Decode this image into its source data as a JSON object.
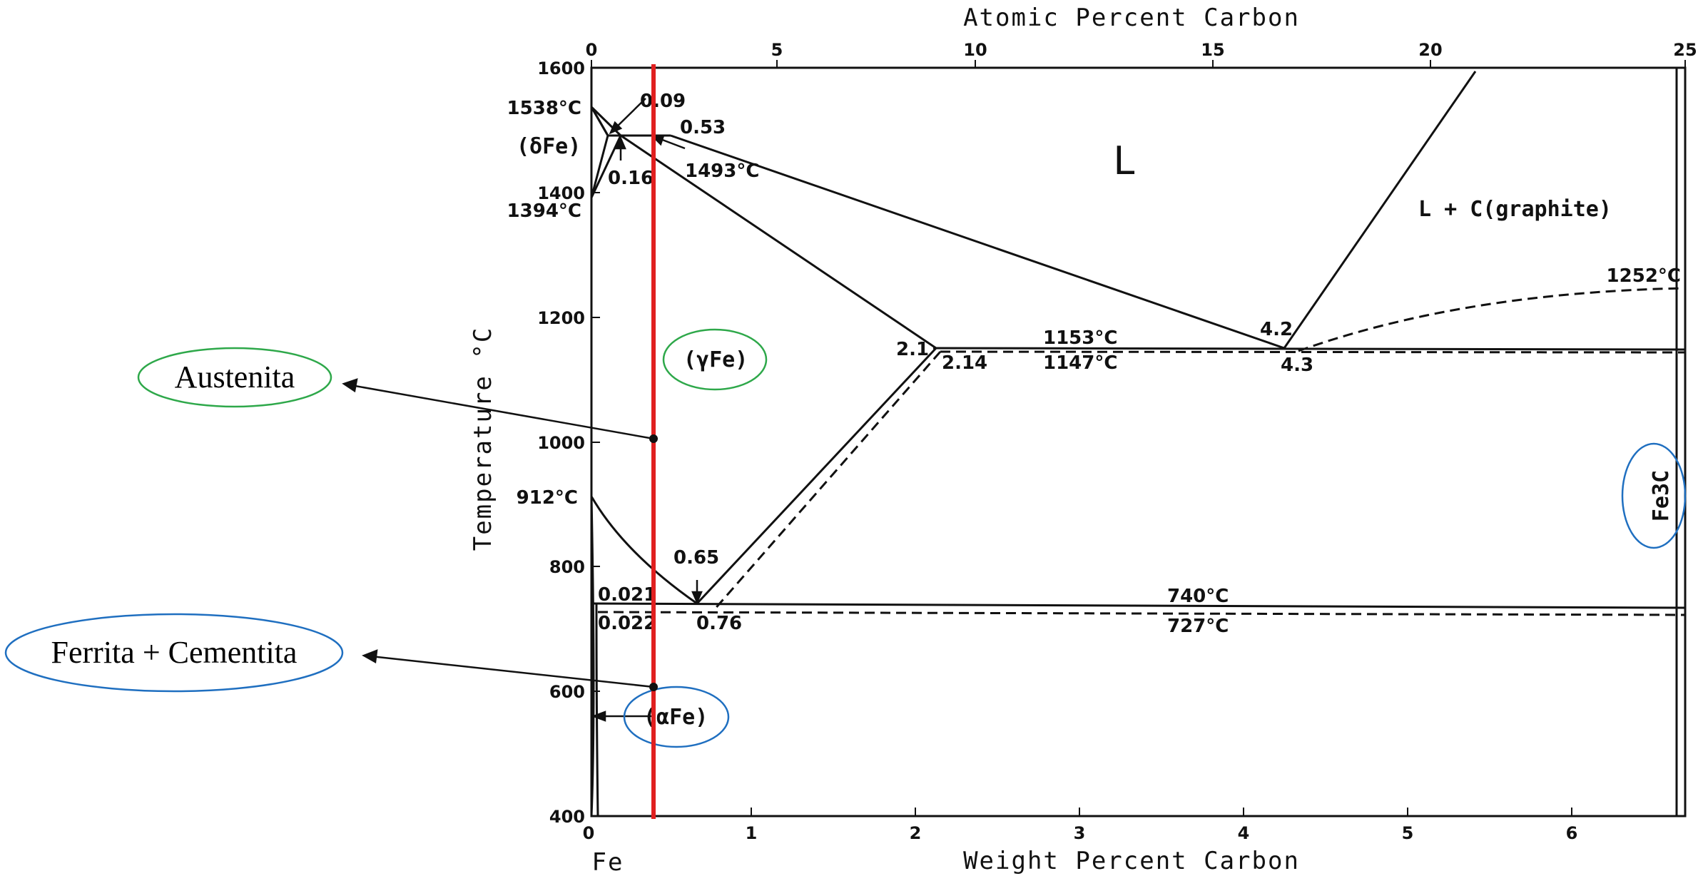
{
  "top_axis": {
    "title": "Atomic Percent Carbon",
    "ticks": [
      "0",
      "5",
      "10",
      "15",
      "20",
      "25"
    ]
  },
  "bottom_axis": {
    "title": "Weight Percent Carbon",
    "ticks": [
      "0",
      "1",
      "2",
      "3",
      "4",
      "5",
      "6"
    ],
    "origin_label": "Fe"
  },
  "left_axis": {
    "title": "Temperature °C",
    "ticks": [
      "1600",
      "1400",
      "1200",
      "1000",
      "800",
      "600",
      "400"
    ]
  },
  "phases": {
    "liquid": "L",
    "liquid_graphite": "L + C(graphite)",
    "delta_fe": "(δFe)",
    "gamma_fe": "(γFe)",
    "alpha_fe": "(αFe)",
    "cementite": "Fe3C"
  },
  "points": {
    "t1538": "1538°C",
    "t1394": "1394°C",
    "t1493": "1493°C",
    "t912": "912°C",
    "c009": "0.09",
    "c053": "0.53",
    "c016": "0.16",
    "c21": "2.1",
    "c214": "2.14",
    "t1153": "1153°C",
    "t1147": "1147°C",
    "c42": "4.2",
    "c43": "4.3",
    "t1252": "1252°C",
    "c065": "0.65",
    "c0021": "0.021",
    "c0022": "0.022",
    "c076": "0.76",
    "t740": "740°C",
    "t727": "727°C"
  },
  "callouts": {
    "austenita": "Austenita",
    "ferrita_cementita": "Ferrita + Cementita"
  },
  "colors": {
    "marker_line": "#e02020",
    "green_ellipse": "#2ea84a",
    "blue_ellipse": "#1f6fc0",
    "lines": "#111111"
  }
}
